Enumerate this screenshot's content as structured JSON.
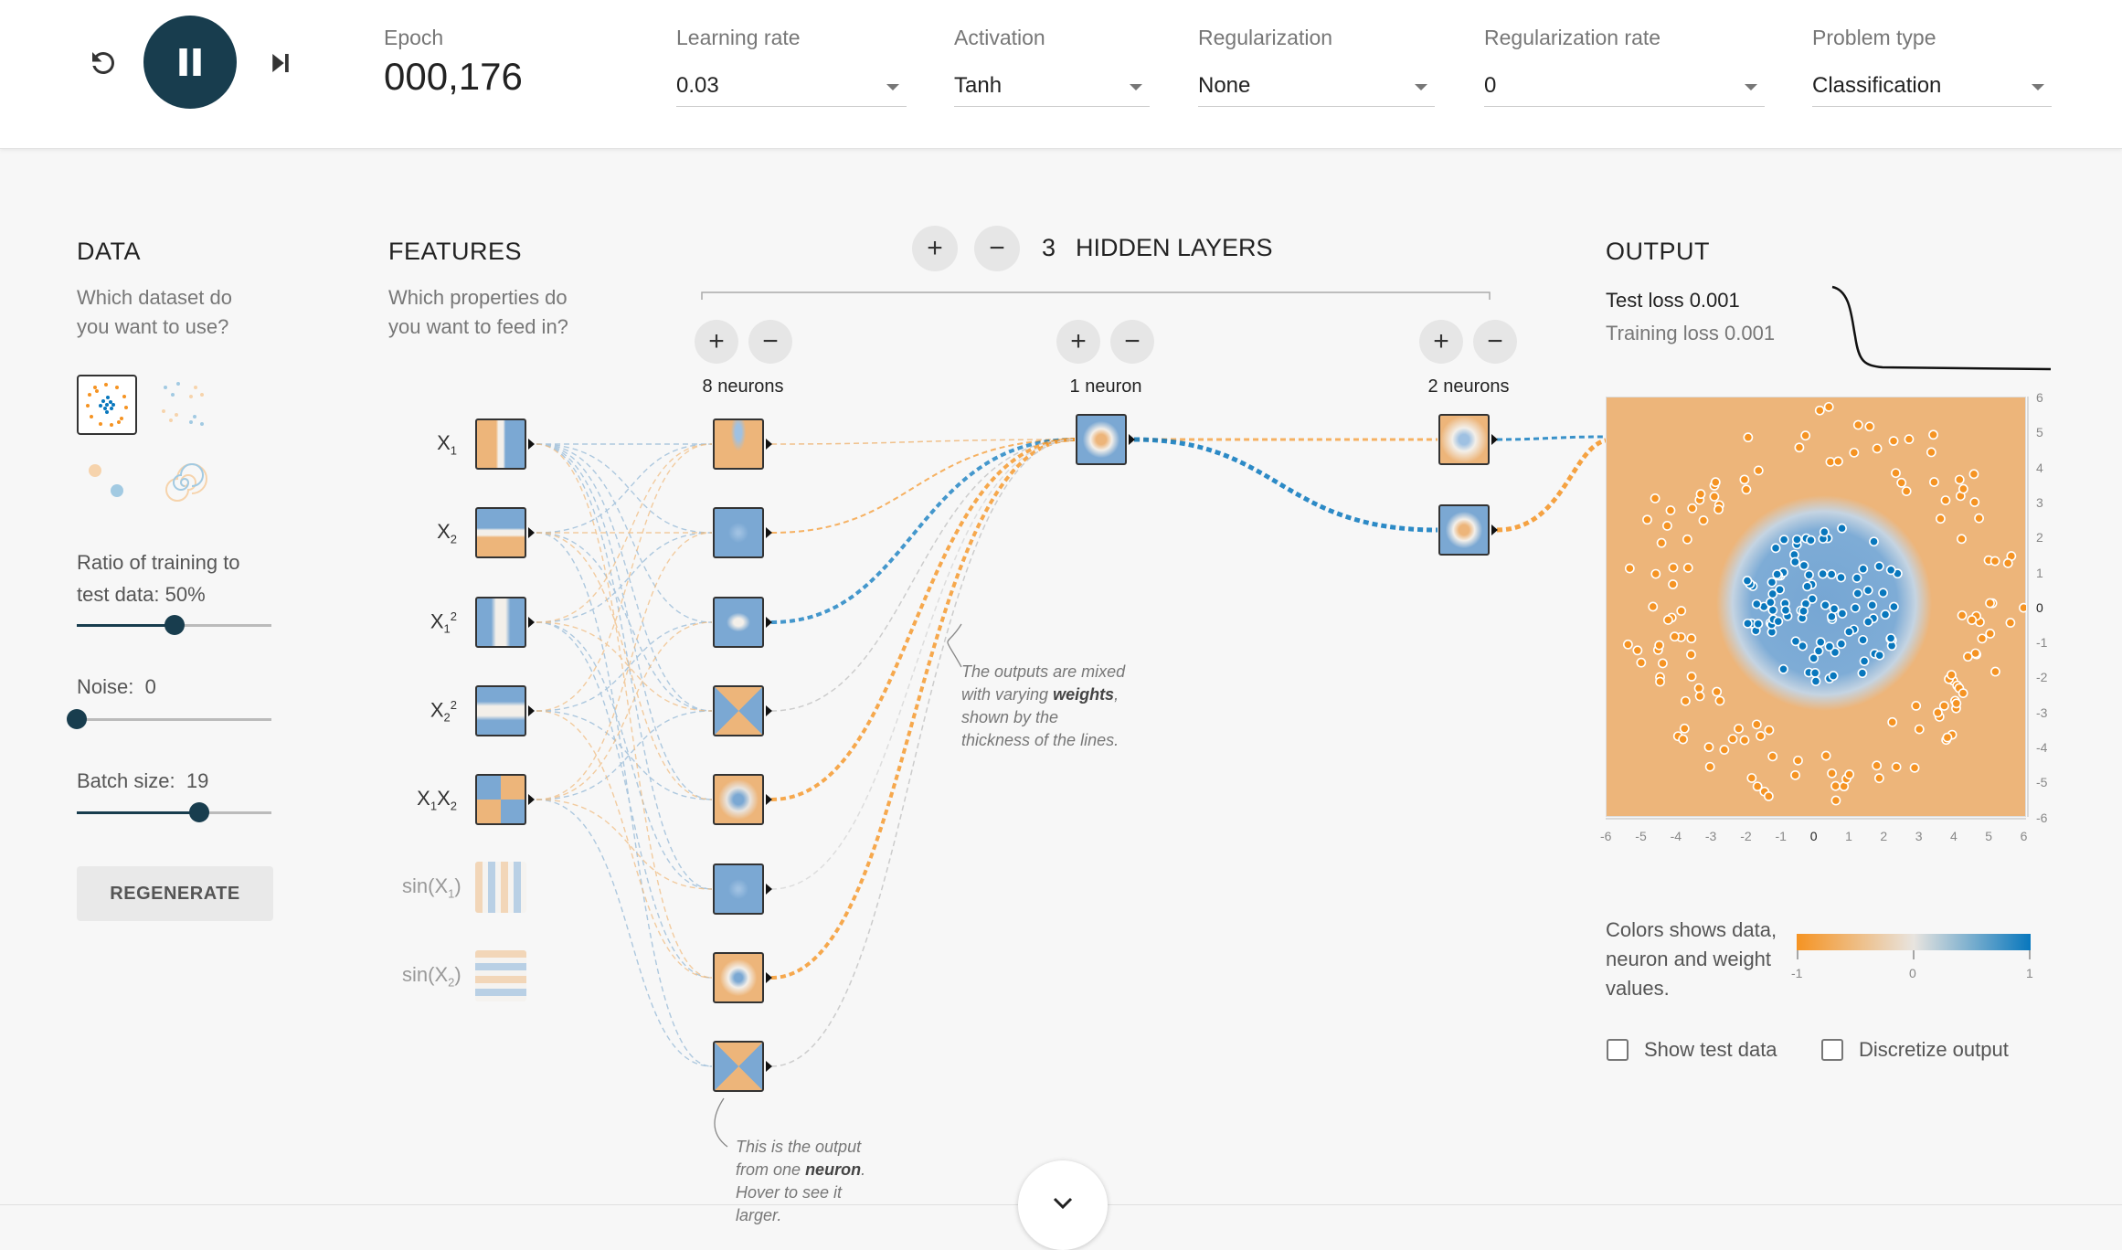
{
  "toolbar": {
    "epoch_label": "Epoch",
    "epoch_value": "000,176",
    "learning_rate": {
      "label": "Learning rate",
      "value": "0.03"
    },
    "activation": {
      "label": "Activation",
      "value": "Tanh"
    },
    "regularization": {
      "label": "Regularization",
      "value": "None"
    },
    "regularization_rate": {
      "label": "Regularization rate",
      "value": "0"
    },
    "problem_type": {
      "label": "Problem type",
      "value": "Classification"
    },
    "icons": {
      "reset": "reset-icon",
      "play": "pause-icon",
      "step": "step-icon"
    }
  },
  "data_panel": {
    "title": "DATA",
    "subtitle": "Which dataset do you want to use?",
    "ratio_label": "Ratio of training to test data:",
    "ratio_value": "50%",
    "ratio_fraction": 0.5,
    "noise_label": "Noise:",
    "noise_value": "0",
    "noise_fraction": 0.0,
    "batch_label": "Batch size:",
    "batch_value": "19",
    "batch_fraction": 0.63,
    "regenerate": "REGENERATE"
  },
  "features_panel": {
    "title": "FEATURES",
    "subtitle": "Which properties do you want to feed in?",
    "features": [
      {
        "base": "X",
        "sub": "1",
        "sup": "",
        "base2": "",
        "sub2": "",
        "active": true
      },
      {
        "base": "X",
        "sub": "2",
        "sup": "",
        "base2": "",
        "sub2": "",
        "active": true
      },
      {
        "base": "X",
        "sub": "1",
        "sup": "2",
        "base2": "",
        "sub2": "",
        "active": true
      },
      {
        "base": "X",
        "sub": "2",
        "sup": "2",
        "base2": "",
        "sub2": "",
        "active": true
      },
      {
        "base": "X",
        "sub": "1",
        "sup": "",
        "base2": "X",
        "sub2": "2",
        "active": true
      },
      {
        "base": "sin(X",
        "sub": "1",
        "sup": "",
        "base2": ")",
        "sub2": "",
        "active": false
      },
      {
        "base": "sin(X",
        "sub": "2",
        "sup": "",
        "base2": ")",
        "sub2": "",
        "active": false
      }
    ]
  },
  "network": {
    "hidden_count": "3",
    "hidden_label": "HIDDEN LAYERS",
    "layers": [
      {
        "neurons_label": "8 neurons"
      },
      {
        "neurons_label": "1 neuron"
      },
      {
        "neurons_label": "2 neurons"
      }
    ],
    "annotation_weights_pre": "The outputs are mixed with varying",
    "annotation_weights_bold": "weights",
    "annotation_weights_post": ", shown by the thickness of the lines.",
    "annotation_neuron_pre": "This is the output from one",
    "annotation_neuron_bold": "neuron",
    "annotation_neuron_post": ". Hover to see it larger."
  },
  "output_panel": {
    "title": "OUTPUT",
    "test_loss": "Test loss 0.001",
    "training_loss": "Training loss 0.001",
    "x_ticks": [
      "-6",
      "-5",
      "-4",
      "-3",
      "-2",
      "-1",
      "0",
      "1",
      "2",
      "3",
      "4",
      "5",
      "6"
    ],
    "y_ticks": [
      "6",
      "5",
      "4",
      "3",
      "2",
      "1",
      "0",
      "-1",
      "-2",
      "-3",
      "-4",
      "-5",
      "-6"
    ],
    "legend_text": "Colors shows data, neuron and weight values.",
    "legend_ticks": [
      "-1",
      "0",
      "1"
    ],
    "show_test_data": "Show test data",
    "discretize_output": "Discretize output"
  },
  "colors": {
    "orange": "#F59322",
    "blue": "#0877BD",
    "navy": "#183D4E",
    "orange_bg": "#EDB57A",
    "blue_region": "#76A6D3"
  }
}
